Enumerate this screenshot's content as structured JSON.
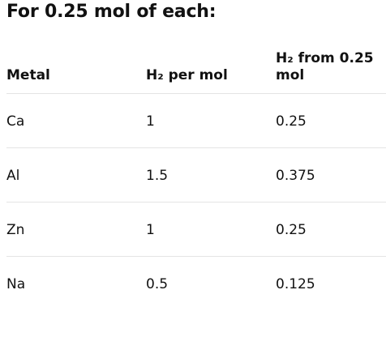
{
  "header": {
    "title": "For 0.25 mol of each:"
  },
  "table": {
    "columns": [
      "Metal",
      "H₂ per mol",
      "H₂ from 0.25 mol"
    ],
    "rows": [
      [
        "Ca",
        "1",
        "0.25"
      ],
      [
        "Al",
        "1.5",
        "0.375"
      ],
      [
        "Zn",
        "1",
        "0.25"
      ],
      [
        "Na",
        "0.5",
        "0.125"
      ]
    ]
  }
}
